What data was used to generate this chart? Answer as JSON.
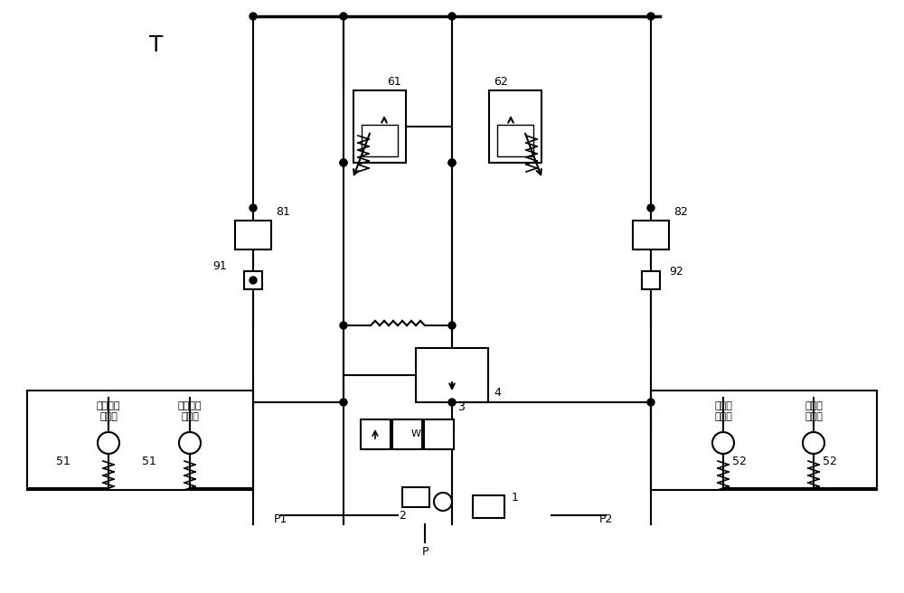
{
  "bg_color": "#ffffff",
  "line_color": "#000000",
  "line_color_gray": "#808080",
  "component_color": "#a0a0a0",
  "figsize": [
    10.0,
    6.56
  ],
  "dpi": 100,
  "labels": {
    "T": "T",
    "P": "P",
    "P1": "P1",
    "P2": "P2",
    "61": "61",
    "62": "62",
    "81": "81",
    "82": "82",
    "91": "91",
    "92": "92",
    "51_left": "51",
    "51_right": "51",
    "52_left": "52",
    "52_right": "52",
    "1": "1",
    "2": "2",
    "3": "3",
    "4": "4",
    "W": "W",
    "main_hoist": "主卷扬负\n载压力",
    "sub_hoist": "副卷扬负\n载压力",
    "luffing": "变幅负\n载压力",
    "telescoping": "伸缩负\n载压力"
  }
}
